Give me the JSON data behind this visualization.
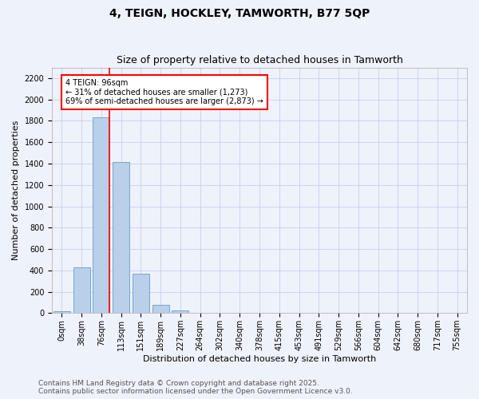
{
  "title1": "4, TEIGN, HOCKLEY, TAMWORTH, B77 5QP",
  "title2": "Size of property relative to detached houses in Tamworth",
  "xlabel": "Distribution of detached houses by size in Tamworth",
  "ylabel": "Number of detached properties",
  "categories": [
    "0sqm",
    "38sqm",
    "76sqm",
    "113sqm",
    "151sqm",
    "189sqm",
    "227sqm",
    "264sqm",
    "302sqm",
    "340sqm",
    "378sqm",
    "415sqm",
    "453sqm",
    "491sqm",
    "529sqm",
    "566sqm",
    "604sqm",
    "642sqm",
    "680sqm",
    "717sqm",
    "755sqm"
  ],
  "values": [
    15,
    425,
    1830,
    1415,
    365,
    75,
    27,
    5,
    0,
    0,
    0,
    0,
    0,
    0,
    0,
    0,
    0,
    0,
    0,
    0,
    0
  ],
  "bar_color": "#b8d0ea",
  "bar_edge_color": "#6a9dc8",
  "vline_color": "red",
  "annotation_line1": "4 TEIGN: 96sqm",
  "annotation_line2": "← 31% of detached houses are smaller (1,273)",
  "annotation_line3": "69% of semi-detached houses are larger (2,873) →",
  "annotation_box_color": "white",
  "annotation_box_edge_color": "red",
  "ylim": [
    0,
    2300
  ],
  "yticks": [
    0,
    200,
    400,
    600,
    800,
    1000,
    1200,
    1400,
    1600,
    1800,
    2000,
    2200
  ],
  "footer1": "Contains HM Land Registry data © Crown copyright and database right 2025.",
  "footer2": "Contains public sector information licensed under the Open Government Licence v3.0.",
  "bg_color": "#eef2fb",
  "grid_color": "#c8d0e8",
  "title1_fontsize": 10,
  "title2_fontsize": 9,
  "xlabel_fontsize": 8,
  "ylabel_fontsize": 8,
  "tick_fontsize": 7,
  "annotation_fontsize": 7,
  "footer_fontsize": 6.5
}
